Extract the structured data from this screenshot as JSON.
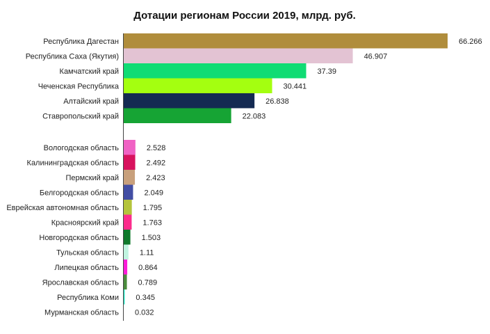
{
  "chart_data": {
    "type": "bar",
    "orientation": "horizontal",
    "title": "Дотации регионам России 2019, млрд. руб.",
    "xlabel": "",
    "ylabel": "",
    "grid": false,
    "legend": "none",
    "xlim": [
      0,
      70
    ],
    "groups": [
      {
        "categories": [
          "Республика Дагестан",
          "Республика Саха (Якутия)",
          "Камчатский край",
          "Чеченская Республика",
          "Алтайский край",
          "Ставропольский край"
        ],
        "values": [
          66.266,
          46.907,
          37.39,
          30.441,
          26.838,
          22.083
        ],
        "labels": [
          "66.266",
          "46.907",
          "37.39",
          "30.441",
          "26.838",
          "22.083"
        ],
        "colors": [
          "#b08d3c",
          "#e3c3d3",
          "#10dc74",
          "#a4ff10",
          "#142a52",
          "#16a434"
        ]
      },
      {
        "categories": [
          "Вологодская область",
          "Калининградская область",
          "Пермский край",
          "Белгородская область",
          "Еврейская автономная область",
          "Красноярский край",
          "Новгородская область",
          "Тульская область",
          "Липецкая область",
          "Ярославская область",
          "Республика Коми",
          "Мурманская область"
        ],
        "values": [
          2.528,
          2.492,
          2.423,
          2.049,
          1.795,
          1.763,
          1.503,
          1.11,
          0.864,
          0.789,
          0.345,
          0.032
        ],
        "labels": [
          "2.528",
          "2.492",
          "2.423",
          "2.049",
          "1.795",
          "1.763",
          "1.503",
          "1.11",
          "0.864",
          "0.789",
          "0.345",
          "0.032"
        ],
        "colors": [
          "#f062c4",
          "#d8125e",
          "#c8a07c",
          "#424ea4",
          "#b4c43c",
          "#fc2c8c",
          "#107a2c",
          "#c0f4e0",
          "#fc1cd8",
          "#4a8c3c",
          "#28e4c4",
          "#8ec5c0"
        ]
      }
    ]
  }
}
